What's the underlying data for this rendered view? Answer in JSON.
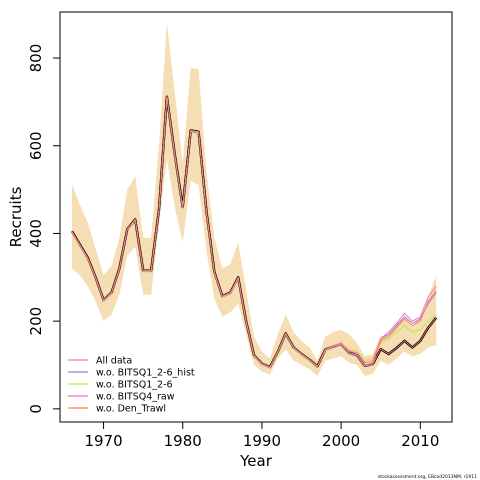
{
  "chart_data": {
    "type": "line",
    "title": "",
    "xlabel": "Year",
    "ylabel": "Recruits",
    "xlim": [
      1964.5,
      2014
    ],
    "ylim": [
      -30,
      905
    ],
    "x_ticks": [
      1970,
      1980,
      1990,
      2000,
      2010
    ],
    "y_ticks": [
      0,
      200,
      400,
      600,
      800
    ],
    "grid": false,
    "legend_position": "bottom-left",
    "footnote": "stockassessment.org, EBcod2013NM, r1911",
    "colors": {
      "band": "#f5deb3",
      "all_data": "#000000",
      "series": [
        "#ff7f7f",
        "#9f79ee",
        "#b3ee3a",
        "#ff6eb4",
        "#ff7f50"
      ]
    },
    "x": [
      1966,
      1967,
      1968,
      1969,
      1970,
      1971,
      1972,
      1973,
      1974,
      1975,
      1976,
      1977,
      1978,
      1979,
      1980,
      1981,
      1982,
      1983,
      1984,
      1985,
      1986,
      1987,
      1988,
      1989,
      1990,
      1991,
      1992,
      1993,
      1994,
      1995,
      1996,
      1997,
      1998,
      1999,
      2000,
      2001,
      2002,
      2003,
      2004,
      2005,
      2006,
      2007,
      2008,
      2009,
      2010,
      2011,
      2012
    ],
    "band_upper": [
      512,
      465,
      425,
      365,
      305,
      325,
      390,
      500,
      530,
      390,
      390,
      600,
      880,
      720,
      560,
      778,
      775,
      540,
      390,
      320,
      330,
      380,
      270,
      165,
      130,
      115,
      170,
      215,
      175,
      155,
      140,
      110,
      165,
      175,
      180,
      170,
      150,
      120,
      125,
      165,
      170,
      195,
      210,
      190,
      210,
      255,
      305
    ],
    "band_lower": [
      320,
      305,
      280,
      245,
      200,
      215,
      260,
      350,
      370,
      260,
      260,
      420,
      570,
      460,
      380,
      520,
      510,
      360,
      250,
      210,
      220,
      240,
      170,
      100,
      85,
      78,
      115,
      135,
      110,
      100,
      90,
      75,
      110,
      115,
      120,
      105,
      100,
      75,
      80,
      110,
      100,
      115,
      130,
      120,
      125,
      140,
      145
    ],
    "series": [
      {
        "name": "All data",
        "values": [
          405,
          375,
          345,
          300,
          248,
          265,
          320,
          410,
          432,
          315,
          315,
          455,
          712,
          580,
          460,
          635,
          632,
          450,
          312,
          257,
          265,
          300,
          200,
          122,
          103,
          95,
          130,
          172,
          140,
          125,
          112,
          97,
          135,
          142,
          148,
          128,
          122,
          98,
          102,
          136,
          125,
          139,
          155,
          140,
          155,
          185,
          208
        ]
      },
      {
        "name": "w.o. BITSQ1_2-6_hist",
        "values": [
          402,
          372,
          342,
          298,
          246,
          263,
          318,
          408,
          430,
          313,
          313,
          452,
          708,
          576,
          457,
          632,
          628,
          446,
          309,
          255,
          262,
          297,
          198,
          120,
          101,
          93,
          129,
          170,
          138,
          123,
          111,
          96,
          133,
          141,
          147,
          127,
          121,
          97,
          101,
          160,
          170,
          190,
          210,
          195,
          205,
          240,
          265
        ]
      },
      {
        "name": "w.o. BITSQ1_2-6",
        "values": [
          403,
          373,
          343,
          299,
          247,
          264,
          319,
          409,
          431,
          314,
          314,
          453,
          710,
          578,
          458,
          633,
          630,
          448,
          310,
          256,
          263,
          298,
          199,
          121,
          102,
          94,
          129,
          171,
          139,
          124,
          111,
          96,
          134,
          142,
          150,
          135,
          132,
          110,
          115,
          150,
          160,
          175,
          190,
          175,
          180,
          200,
          215
        ]
      },
      {
        "name": "w.o. BITSQ4_raw",
        "values": [
          404,
          374,
          344,
          300,
          248,
          265,
          320,
          410,
          432,
          315,
          315,
          455,
          712,
          580,
          459,
          634,
          631,
          449,
          311,
          257,
          264,
          299,
          200,
          122,
          103,
          95,
          130,
          172,
          140,
          125,
          112,
          97,
          135,
          143,
          150,
          132,
          128,
          105,
          110,
          160,
          175,
          195,
          218,
          200,
          210,
          255,
          280
        ]
      },
      {
        "name": "w.o. Den_Trawl",
        "values": [
          404,
          374,
          344,
          300,
          248,
          265,
          320,
          410,
          432,
          315,
          315,
          455,
          714,
          580,
          459,
          634,
          632,
          450,
          312,
          257,
          265,
          300,
          200,
          122,
          103,
          95,
          131,
          172,
          140,
          125,
          112,
          97,
          135,
          143,
          149,
          128,
          123,
          100,
          105,
          155,
          165,
          185,
          205,
          190,
          200,
          245,
          270
        ]
      }
    ]
  }
}
